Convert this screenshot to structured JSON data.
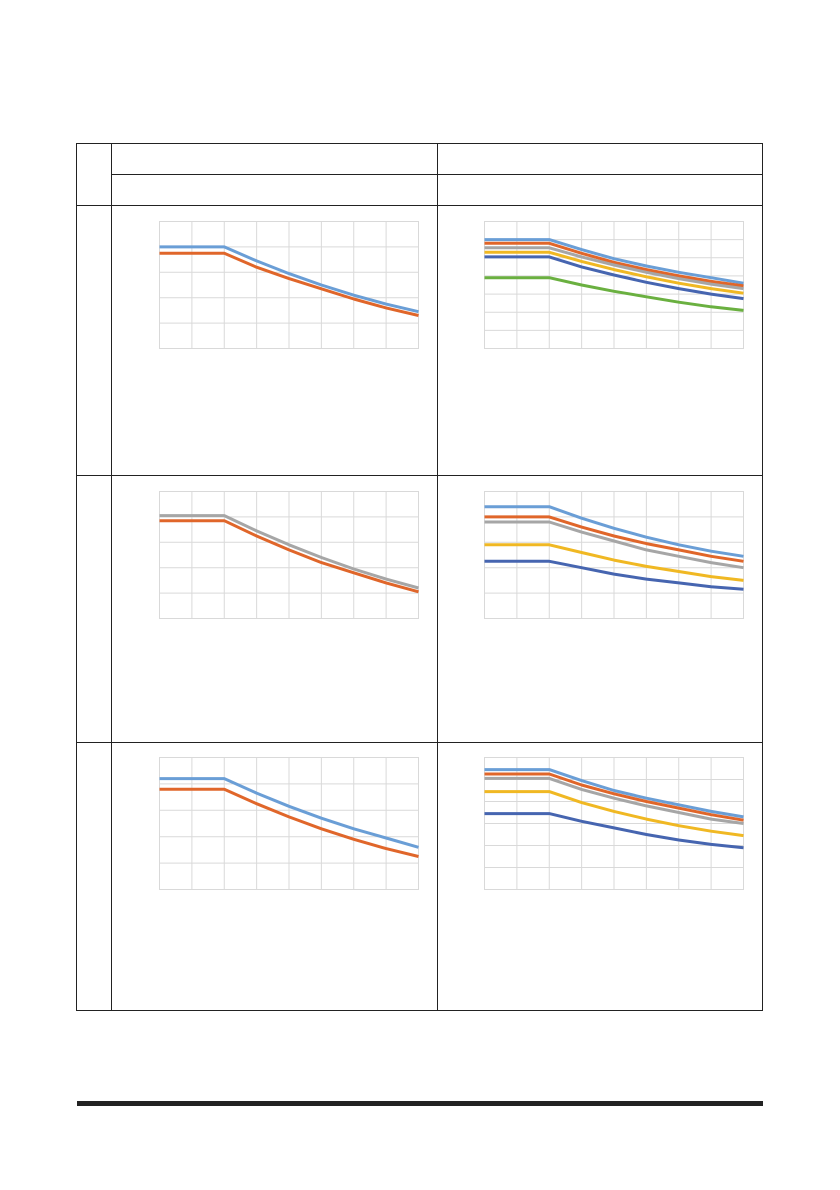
{
  "page": {
    "number": ""
  },
  "table": {
    "header": {
      "col_left": "",
      "col_right": "",
      "sub_left": "",
      "sub_right": ""
    },
    "rows": [
      {
        "label": ""
      },
      {
        "label": ""
      },
      {
        "label": ""
      }
    ]
  },
  "colors": {
    "light_blue": "#6a9ed6",
    "orange": "#e0662a",
    "gray": "#a6a6a6",
    "yellow": "#f0b823",
    "dark_blue": "#4665b0",
    "green": "#6ab040"
  },
  "chart_data": [
    {
      "type": "line",
      "x": [
        0,
        1,
        2,
        3,
        4,
        5,
        6,
        7,
        8
      ],
      "ylim": [
        0,
        5
      ],
      "grid": true,
      "legend": "none",
      "series": [
        {
          "color": "#6a9ed6",
          "values": [
            4.0,
            4.0,
            4.0,
            3.45,
            2.95,
            2.5,
            2.1,
            1.75,
            1.45
          ]
        },
        {
          "color": "#e0662a",
          "values": [
            3.75,
            3.75,
            3.75,
            3.2,
            2.75,
            2.35,
            1.95,
            1.6,
            1.3
          ]
        }
      ]
    },
    {
      "type": "line",
      "x": [
        0,
        1,
        2,
        3,
        4,
        5,
        6,
        7,
        8
      ],
      "ylim": [
        0,
        7
      ],
      "grid": true,
      "legend": "none",
      "series": [
        {
          "color": "#6a9ed6",
          "values": [
            6.0,
            6.0,
            6.0,
            5.45,
            4.95,
            4.55,
            4.2,
            3.9,
            3.6
          ]
        },
        {
          "color": "#e0662a",
          "values": [
            5.8,
            5.8,
            5.8,
            5.25,
            4.75,
            4.35,
            4.0,
            3.7,
            3.45
          ]
        },
        {
          "color": "#a6a6a6",
          "values": [
            5.55,
            5.55,
            5.55,
            5.05,
            4.6,
            4.2,
            3.85,
            3.55,
            3.3
          ]
        },
        {
          "color": "#f0b823",
          "values": [
            5.3,
            5.3,
            5.3,
            4.8,
            4.35,
            3.95,
            3.6,
            3.3,
            3.05
          ]
        },
        {
          "color": "#4665b0",
          "values": [
            5.05,
            5.05,
            5.05,
            4.5,
            4.05,
            3.65,
            3.3,
            3.0,
            2.75
          ]
        },
        {
          "color": "#6ab040",
          "values": [
            3.9,
            3.9,
            3.9,
            3.5,
            3.15,
            2.85,
            2.55,
            2.3,
            2.1
          ]
        }
      ]
    },
    {
      "type": "line",
      "x": [
        0,
        1,
        2,
        3,
        4,
        5,
        6,
        7,
        8
      ],
      "ylim": [
        0,
        5
      ],
      "grid": true,
      "legend": "none",
      "series": [
        {
          "color": "#a6a6a6",
          "values": [
            4.05,
            4.05,
            4.05,
            3.45,
            2.9,
            2.4,
            1.95,
            1.55,
            1.2
          ]
        },
        {
          "color": "#e0662a",
          "values": [
            3.85,
            3.85,
            3.85,
            3.25,
            2.7,
            2.2,
            1.8,
            1.4,
            1.05
          ]
        }
      ]
    },
    {
      "type": "line",
      "x": [
        0,
        1,
        2,
        3,
        4,
        5,
        6,
        7,
        8
      ],
      "ylim": [
        0,
        5
      ],
      "grid": true,
      "legend": "none",
      "series": [
        {
          "color": "#6a9ed6",
          "values": [
            4.4,
            4.4,
            4.4,
            3.95,
            3.55,
            3.2,
            2.9,
            2.65,
            2.45
          ]
        },
        {
          "color": "#e0662a",
          "values": [
            4.0,
            4.0,
            4.0,
            3.6,
            3.25,
            2.95,
            2.7,
            2.45,
            2.25
          ]
        },
        {
          "color": "#a6a6a6",
          "values": [
            3.8,
            3.8,
            3.8,
            3.4,
            3.05,
            2.7,
            2.45,
            2.2,
            2.0
          ]
        },
        {
          "color": "#f0b823",
          "values": [
            2.9,
            2.9,
            2.9,
            2.6,
            2.3,
            2.05,
            1.85,
            1.65,
            1.5
          ]
        },
        {
          "color": "#4665b0",
          "values": [
            2.25,
            2.25,
            2.25,
            2.0,
            1.75,
            1.55,
            1.4,
            1.25,
            1.15
          ]
        }
      ]
    },
    {
      "type": "line",
      "x": [
        0,
        1,
        2,
        3,
        4,
        5,
        6,
        7,
        8
      ],
      "ylim": [
        0,
        5
      ],
      "grid": true,
      "legend": "none",
      "series": [
        {
          "color": "#6a9ed6",
          "values": [
            4.2,
            4.2,
            4.2,
            3.65,
            3.15,
            2.7,
            2.3,
            1.95,
            1.6
          ]
        },
        {
          "color": "#e0662a",
          "values": [
            3.8,
            3.8,
            3.8,
            3.25,
            2.75,
            2.3,
            1.9,
            1.55,
            1.25
          ]
        }
      ]
    },
    {
      "type": "line",
      "x": [
        0,
        1,
        2,
        3,
        4,
        5,
        6,
        7,
        8
      ],
      "ylim": [
        0,
        6
      ],
      "grid": true,
      "legend": "none",
      "series": [
        {
          "color": "#6a9ed6",
          "values": [
            5.45,
            5.45,
            5.45,
            4.95,
            4.5,
            4.15,
            3.85,
            3.55,
            3.3
          ]
        },
        {
          "color": "#e0662a",
          "values": [
            5.25,
            5.25,
            5.25,
            4.75,
            4.35,
            4.0,
            3.7,
            3.4,
            3.15
          ]
        },
        {
          "color": "#a6a6a6",
          "values": [
            5.05,
            5.05,
            5.05,
            4.55,
            4.15,
            3.8,
            3.5,
            3.2,
            3.0
          ]
        },
        {
          "color": "#f0b823",
          "values": [
            4.45,
            4.45,
            4.45,
            3.95,
            3.55,
            3.2,
            2.9,
            2.65,
            2.45
          ]
        },
        {
          "color": "#4665b0",
          "values": [
            3.45,
            3.45,
            3.45,
            3.1,
            2.8,
            2.5,
            2.25,
            2.05,
            1.9
          ]
        }
      ]
    }
  ]
}
